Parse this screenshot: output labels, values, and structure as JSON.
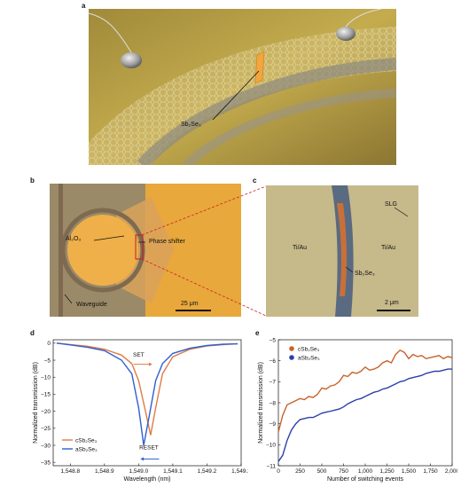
{
  "figure": {
    "panel_letters": [
      "a",
      "b",
      "c",
      "d",
      "e"
    ]
  },
  "panel_a": {
    "label": "Sb₂Se₃",
    "colors": {
      "background": "#c4ac4e",
      "graphene": "#d9c98a",
      "strip": "#f2a640"
    }
  },
  "panel_b": {
    "al2o3_label": "Al₂O₃",
    "phase_shifter_label": "Phase shifter",
    "waveguide_label": "Waveguide",
    "scale_label": "25 μm",
    "colors": {
      "gold": "#e8a83c",
      "ring": "#7d6a50"
    }
  },
  "panel_c": {
    "slg_label": "SLG",
    "tiau_left": "Ti/Au",
    "tiau_right": "Ti/Au",
    "sb2se3_label": "Sb₂Se₃",
    "scale_label": "2 μm",
    "colors": {
      "background": "#c6b98a",
      "waveguide": "#5a6a80",
      "strip": "#c8703a"
    }
  },
  "panel_d": {
    "set_label": "SET",
    "reset_label": "RESET"
  },
  "panel_e": {},
  "chart_data": [
    {
      "type": "line",
      "xlabel": "Wavelength (nm)",
      "ylabel": "Normalized transmission (dB)",
      "xlim": [
        1548.75,
        1549.3
      ],
      "ylim": [
        -36,
        1
      ],
      "xticks": [
        "1,548.8",
        "1,548.9",
        "1,549.0",
        "1,549.1",
        "1,549.2",
        "1,549.3"
      ],
      "xtick_values": [
        1548.8,
        1548.9,
        1549.0,
        1549.1,
        1549.2,
        1549.3
      ],
      "yticks": [
        0,
        -5,
        -10,
        -15,
        -20,
        -25,
        -30,
        -35
      ],
      "series": [
        {
          "name": "cSb₂Se₃",
          "color": "#e07a45",
          "x": [
            1548.76,
            1548.8,
            1548.85,
            1548.9,
            1548.95,
            1548.98,
            1549.0,
            1549.02,
            1549.035,
            1549.05,
            1549.07,
            1549.1,
            1549.15,
            1549.2,
            1549.25,
            1549.29
          ],
          "y": [
            0,
            -0.4,
            -0.9,
            -1.8,
            -3.5,
            -6,
            -11,
            -20,
            -27,
            -19,
            -9,
            -4,
            -1.8,
            -0.8,
            -0.4,
            -0.2
          ]
        },
        {
          "name": "aSb₂Se₃",
          "color": "#2f5fd0",
          "x": [
            1548.76,
            1548.8,
            1548.85,
            1548.9,
            1548.95,
            1548.98,
            1549.0,
            1549.015,
            1549.03,
            1549.05,
            1549.07,
            1549.1,
            1549.15,
            1549.2,
            1549.25,
            1549.29
          ],
          "y": [
            0,
            -0.5,
            -1.2,
            -2.2,
            -5,
            -9,
            -19,
            -30,
            -22,
            -11,
            -6,
            -3,
            -1.5,
            -0.7,
            -0.3,
            -0.2
          ]
        }
      ],
      "legend": "bottom-left"
    },
    {
      "type": "line",
      "xlabel": "Number of switching events",
      "ylabel": "Normalized transmission (dB)",
      "xlim": [
        0,
        2000
      ],
      "ylim": [
        -11,
        -5
      ],
      "xticks": [
        0,
        250,
        500,
        750,
        1000,
        1250,
        1500,
        1750,
        2000
      ],
      "xtick_labels": [
        "0",
        "250",
        "500",
        "750",
        "1,000",
        "1,250",
        "1,500",
        "1,750",
        "2,000"
      ],
      "yticks": [
        -11,
        -10,
        -9,
        -8,
        -7,
        -6,
        -5
      ],
      "series": [
        {
          "name": "cSb₂Se₃",
          "color": "#c8632a",
          "x": [
            0,
            50,
            100,
            150,
            200,
            250,
            300,
            350,
            400,
            450,
            500,
            550,
            600,
            650,
            700,
            750,
            800,
            850,
            900,
            950,
            1000,
            1050,
            1100,
            1150,
            1200,
            1250,
            1300,
            1350,
            1400,
            1450,
            1500,
            1550,
            1600,
            1650,
            1700,
            1750,
            1800,
            1850,
            1900,
            1950,
            2000
          ],
          "y": [
            -9.4,
            -8.6,
            -8.1,
            -8.0,
            -7.9,
            -7.8,
            -7.85,
            -7.7,
            -7.75,
            -7.6,
            -7.3,
            -7.35,
            -7.2,
            -7.15,
            -7.0,
            -6.7,
            -6.75,
            -6.55,
            -6.6,
            -6.5,
            -6.3,
            -6.45,
            -6.4,
            -6.3,
            -6.1,
            -6.0,
            -6.1,
            -5.7,
            -5.5,
            -5.6,
            -5.9,
            -5.7,
            -5.8,
            -5.75,
            -5.9,
            -5.85,
            -5.8,
            -5.75,
            -5.9,
            -5.8,
            -5.85
          ]
        },
        {
          "name": "aSb₂Se₃",
          "color": "#2c3fa8",
          "x": [
            0,
            50,
            100,
            150,
            200,
            250,
            300,
            350,
            400,
            450,
            500,
            550,
            600,
            650,
            700,
            750,
            800,
            850,
            900,
            950,
            1000,
            1050,
            1100,
            1150,
            1200,
            1250,
            1300,
            1350,
            1400,
            1450,
            1500,
            1550,
            1600,
            1650,
            1700,
            1750,
            1800,
            1850,
            1900,
            1950,
            2000
          ],
          "y": [
            -10.8,
            -10.5,
            -9.8,
            -9.3,
            -9.0,
            -8.8,
            -8.75,
            -8.7,
            -8.7,
            -8.6,
            -8.5,
            -8.45,
            -8.4,
            -8.35,
            -8.3,
            -8.2,
            -8.05,
            -7.95,
            -7.85,
            -7.8,
            -7.7,
            -7.6,
            -7.5,
            -7.45,
            -7.35,
            -7.3,
            -7.2,
            -7.1,
            -7.0,
            -6.95,
            -6.85,
            -6.8,
            -6.75,
            -6.7,
            -6.6,
            -6.55,
            -6.5,
            -6.5,
            -6.45,
            -6.4,
            -6.4
          ]
        }
      ],
      "legend": "top-left"
    }
  ]
}
